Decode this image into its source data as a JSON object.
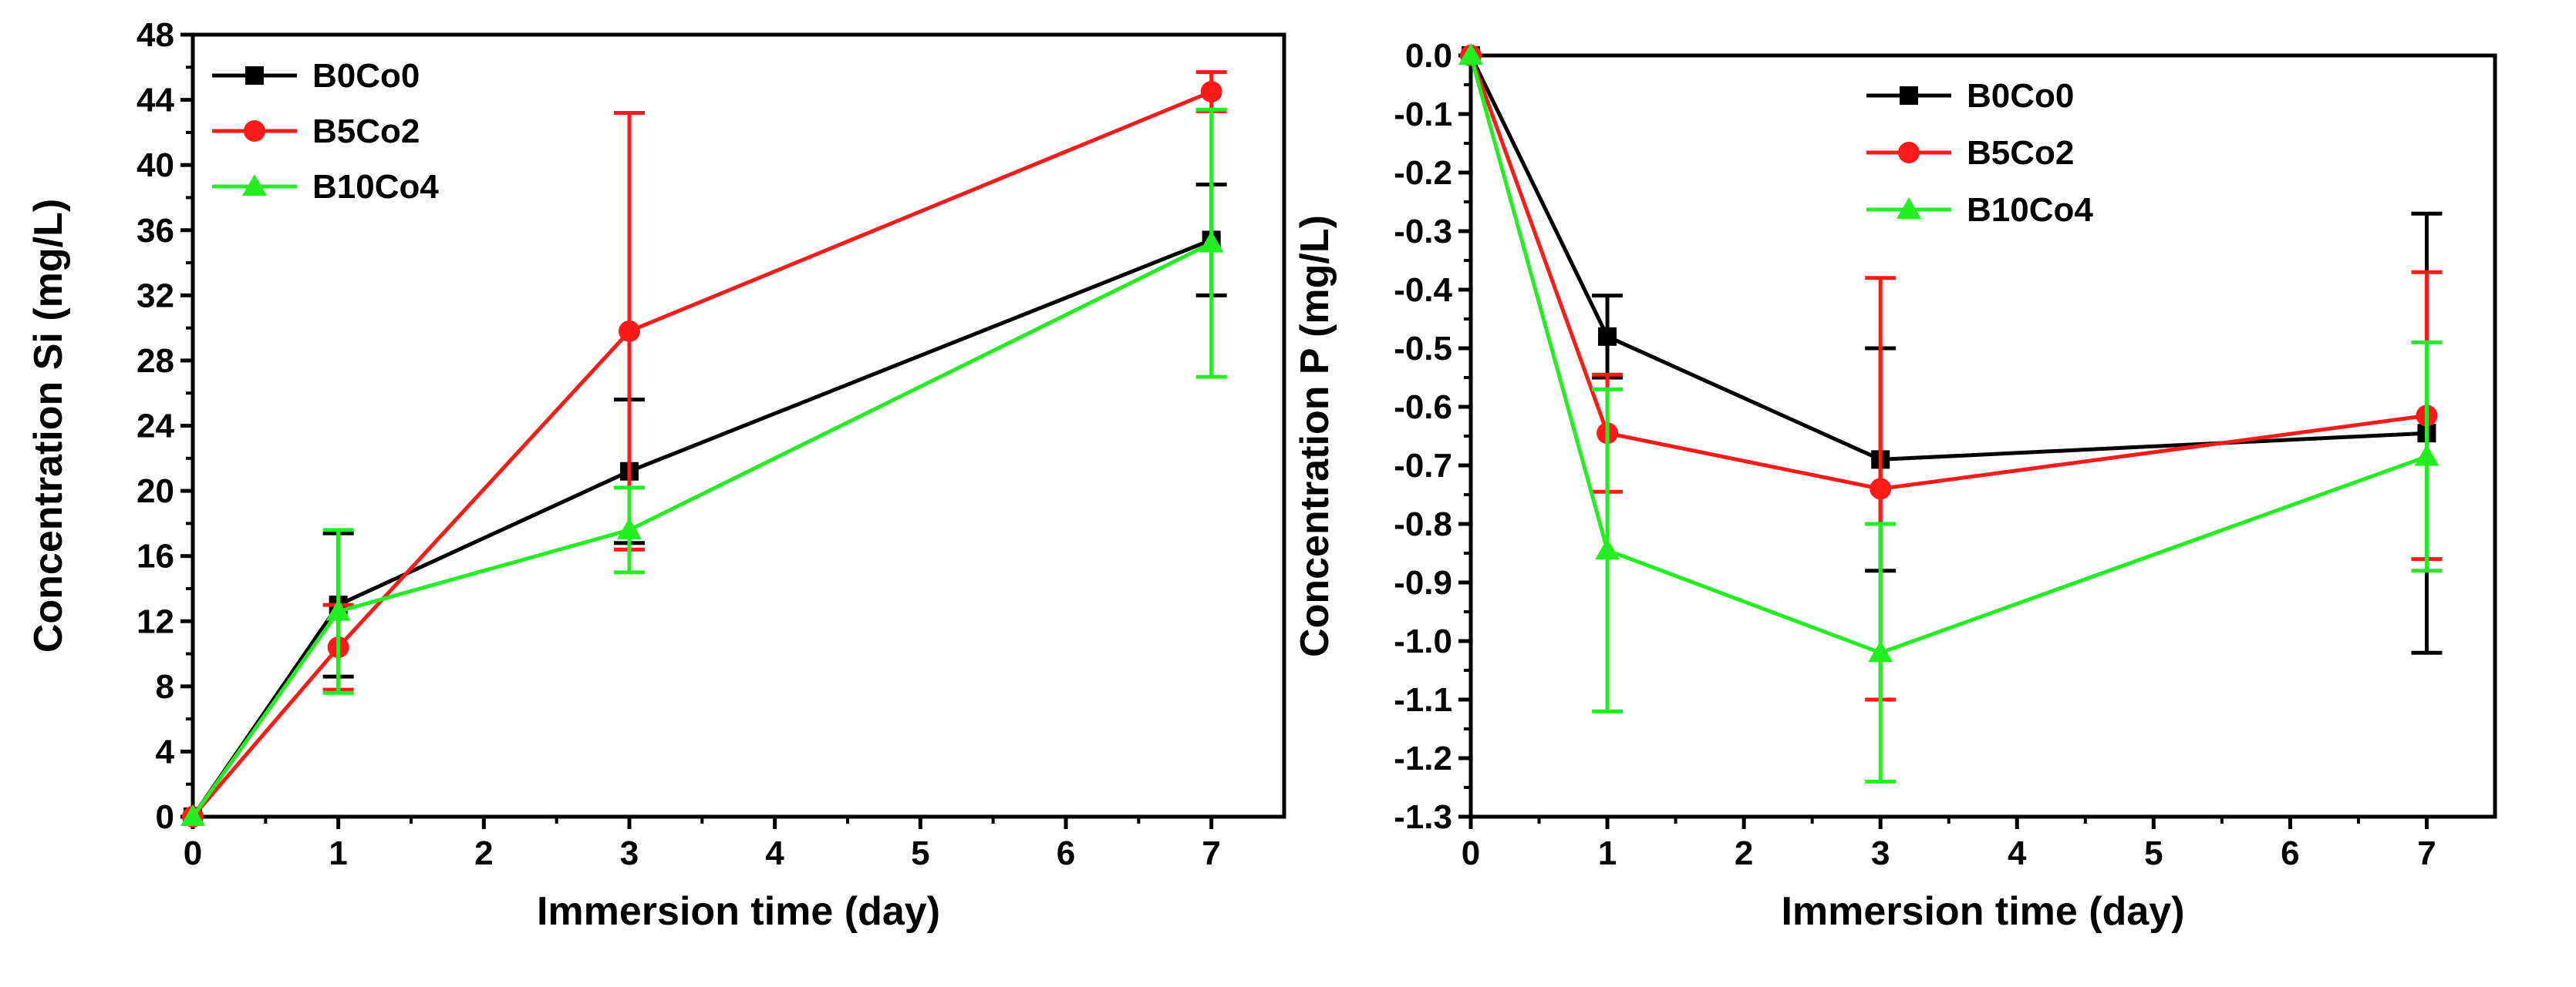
{
  "chart_data": [
    {
      "type": "line",
      "xlabel": "Immersion time (day)",
      "ylabel": "Concentration Si (mg/L)",
      "xlim": [
        0,
        7.5
      ],
      "ylim": [
        0,
        48
      ],
      "xticks": [
        0,
        1,
        2,
        3,
        4,
        5,
        6,
        7
      ],
      "yticks": [
        0,
        4,
        8,
        12,
        16,
        20,
        24,
        28,
        32,
        36,
        40,
        44,
        48
      ],
      "legend_position": "top-left",
      "series": [
        {
          "name": "B0Co0",
          "color": "#000000",
          "marker": "square",
          "x": [
            0,
            1,
            3,
            7
          ],
          "values": [
            0,
            13.0,
            21.2,
            35.4
          ],
          "errors": [
            0,
            4.4,
            4.4,
            3.4
          ]
        },
        {
          "name": "B5Co2",
          "color": "#ff1a1a",
          "marker": "circle",
          "x": [
            0,
            1,
            3,
            7
          ],
          "values": [
            0,
            10.4,
            29.8,
            44.5
          ],
          "errors": [
            0,
            2.6,
            13.4,
            1.2
          ]
        },
        {
          "name": "B10Co4",
          "color": "#22ee22",
          "marker": "triangle",
          "x": [
            0,
            1,
            3,
            7
          ],
          "values": [
            0,
            12.6,
            17.6,
            35.2
          ],
          "errors": [
            0,
            5.0,
            2.6,
            8.2
          ]
        }
      ]
    },
    {
      "type": "line",
      "xlabel": "Immersion time (day)",
      "ylabel": "Concentration P (mg/L)",
      "xlim": [
        0,
        7.5
      ],
      "ylim": [
        -1.3,
        0
      ],
      "xticks": [
        0,
        1,
        2,
        3,
        4,
        5,
        6,
        7
      ],
      "yticks": [
        0.0,
        -0.1,
        -0.2,
        -0.3,
        -0.4,
        -0.5,
        -0.6,
        -0.7,
        -0.8,
        -0.9,
        -1.0,
        -1.1,
        -1.2,
        -1.3
      ],
      "ytick_labels": [
        "0.0",
        "-0.1",
        "-0.2",
        "-0.3",
        "-0.4",
        "-0.5",
        "-0.6",
        "-0.7",
        "-0.8",
        "-0.9",
        "-1.0",
        "-1.1",
        "-1.2",
        "-1.3"
      ],
      "legend_position": "top-center",
      "series": [
        {
          "name": "B0Co0",
          "color": "#000000",
          "marker": "square",
          "x": [
            0,
            1,
            3,
            7
          ],
          "values": [
            0,
            -0.48,
            -0.69,
            -0.645
          ],
          "errors": [
            0,
            0.07,
            0.19,
            0.375
          ]
        },
        {
          "name": "B5Co2",
          "color": "#ff1a1a",
          "marker": "circle",
          "x": [
            0,
            1,
            3,
            7
          ],
          "values": [
            0,
            -0.645,
            -0.74,
            -0.615
          ],
          "errors": [
            0,
            0.1,
            0.36,
            0.245
          ]
        },
        {
          "name": "B10Co4",
          "color": "#22ee22",
          "marker": "triangle",
          "x": [
            0,
            1,
            3,
            7
          ],
          "values": [
            0,
            -0.845,
            -1.02,
            -0.685
          ],
          "errors": [
            0,
            0.275,
            0.22,
            0.195
          ]
        }
      ]
    }
  ]
}
